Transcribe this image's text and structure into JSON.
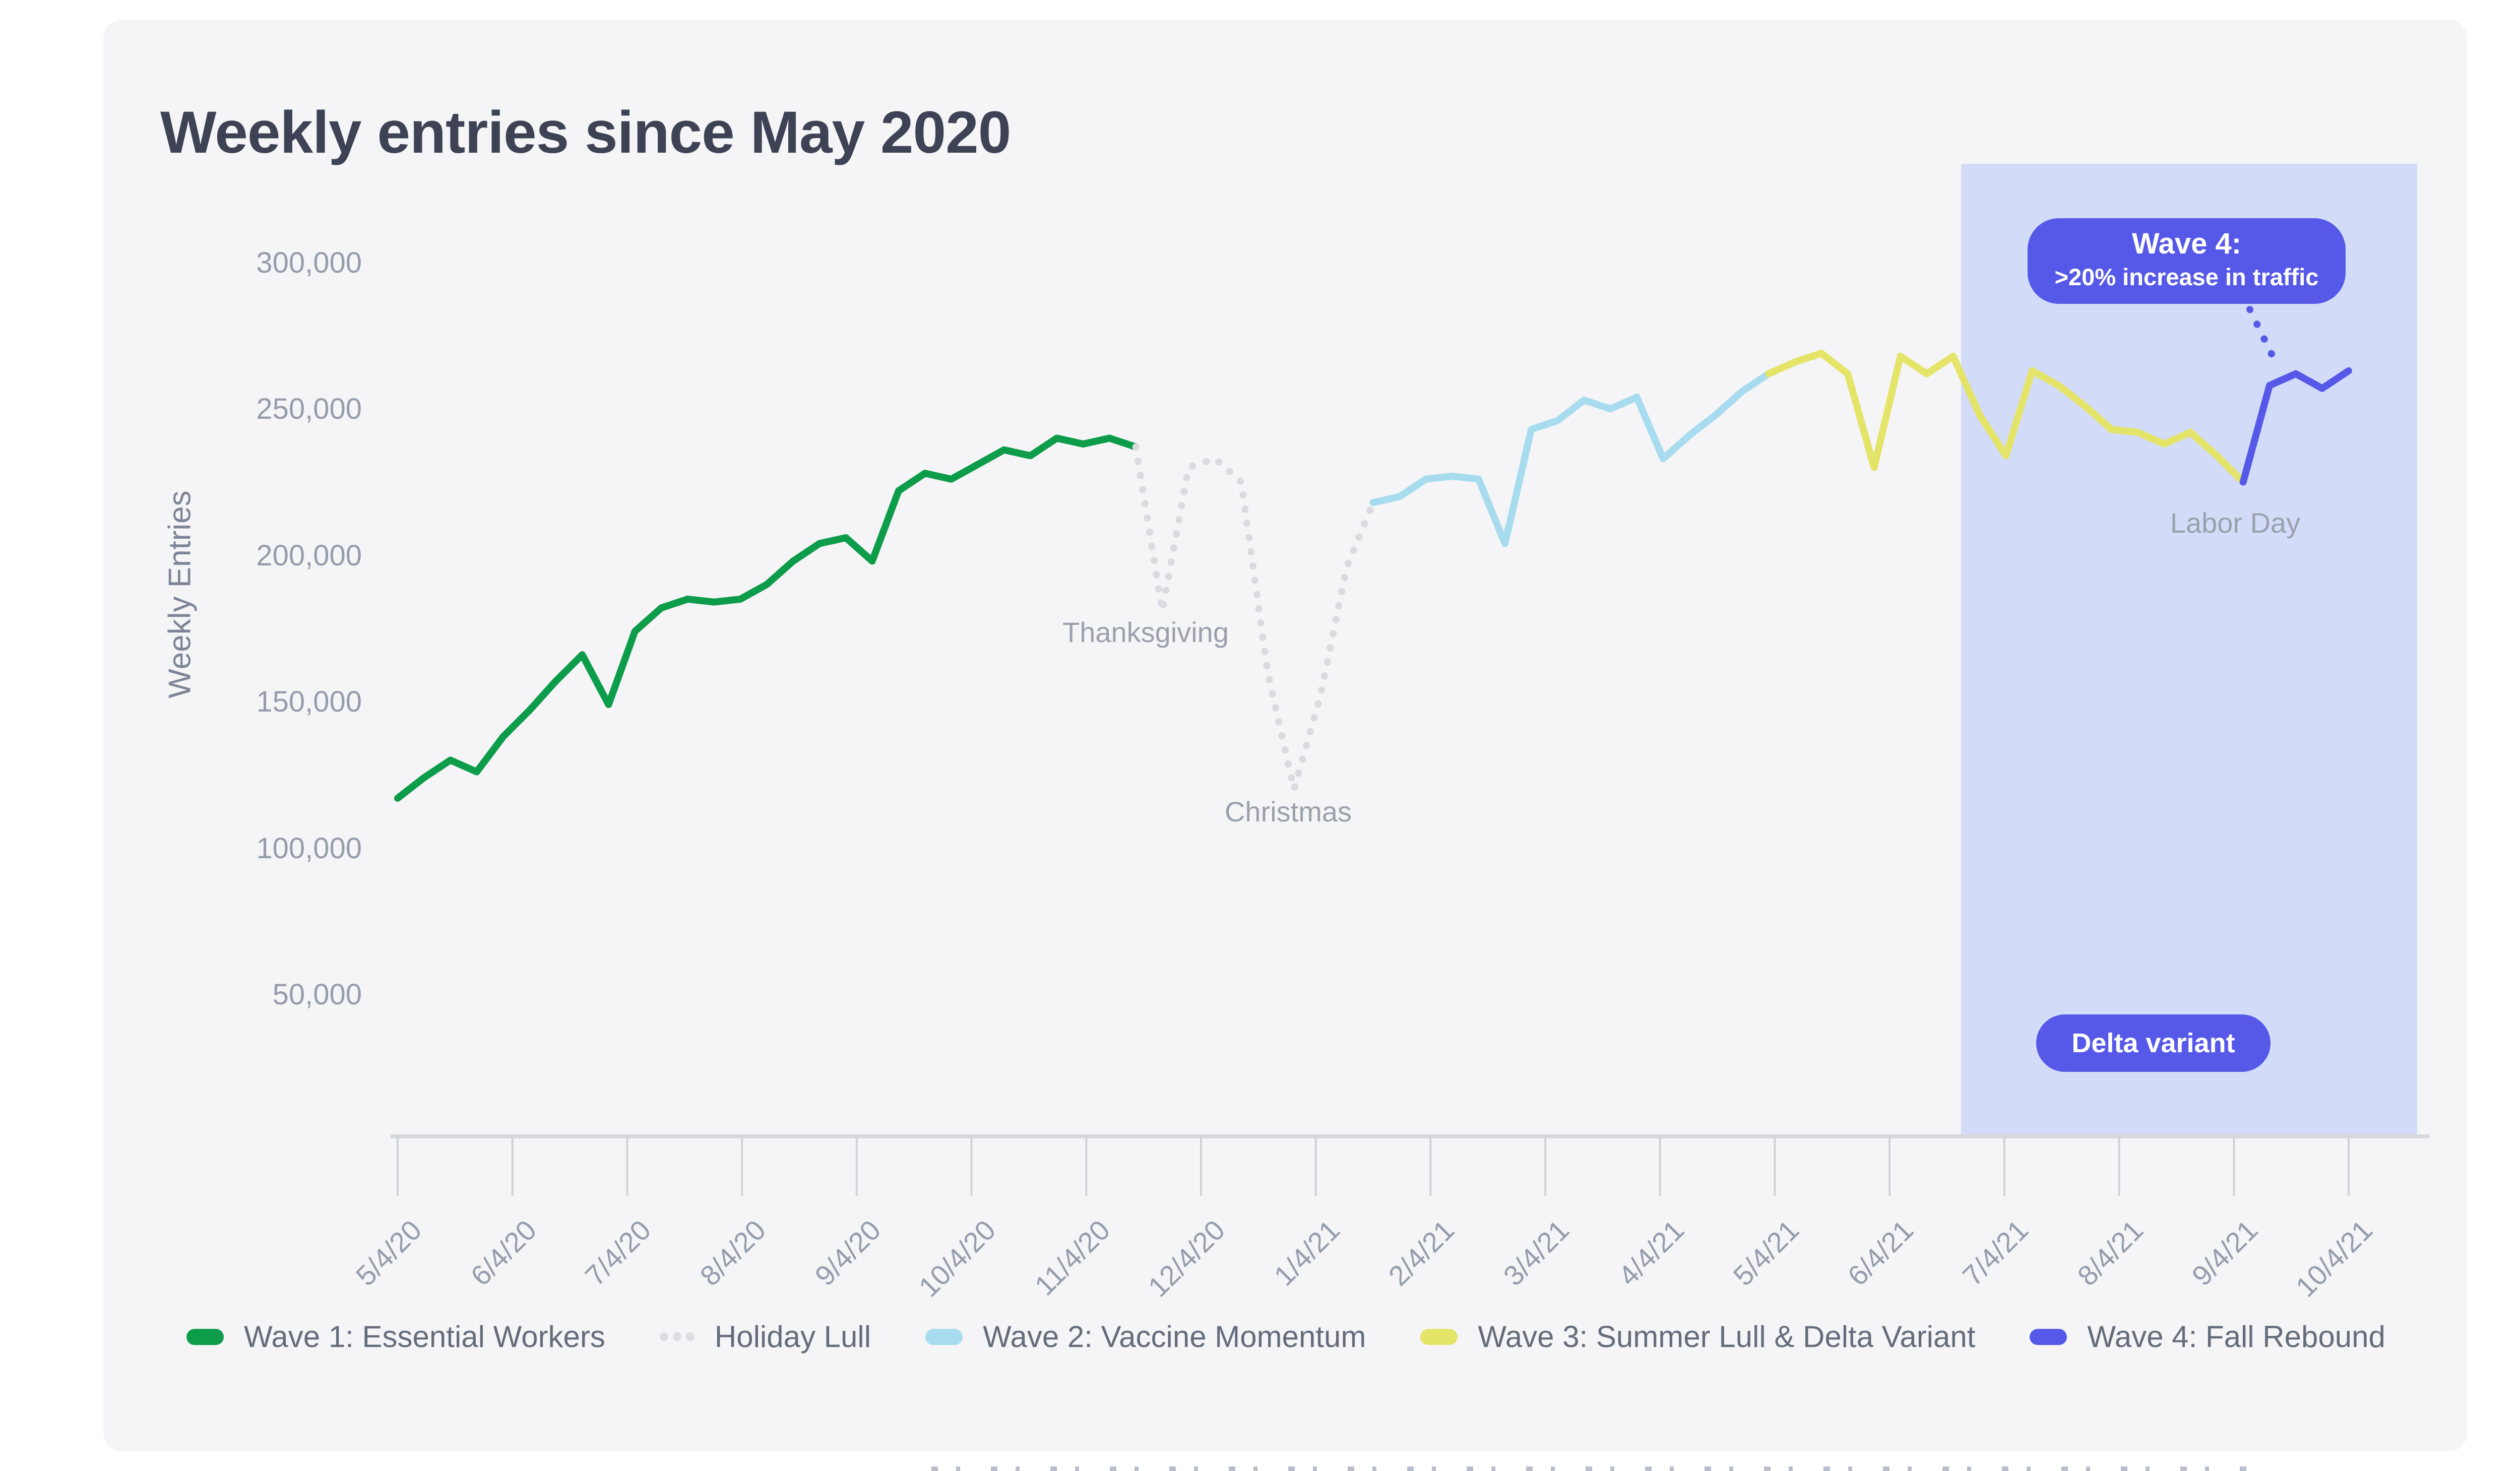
{
  "header": {
    "title": "Weekly entries since May 2020"
  },
  "y_axis": {
    "title": "Weekly Entries",
    "tick_labels": [
      "300,000",
      "250,000",
      "200,000",
      "150,000",
      "100,000",
      "50,000"
    ],
    "tick_values": [
      300,
      250,
      200,
      150,
      100,
      50
    ]
  },
  "x_axis": {
    "tick_labels": [
      "5/4/20",
      "6/4/20",
      "7/4/20",
      "8/4/20",
      "9/4/20",
      "10/4/20",
      "11/4/20",
      "12/4/20",
      "1/4/21",
      "2/4/21",
      "3/4/21",
      "4/4/21",
      "5/4/21",
      "6/4/21",
      "7/4/21",
      "8/4/21",
      "9/4/21",
      "10/4/21"
    ]
  },
  "annotations": {
    "thanksgiving": "Thanksgiving",
    "christmas": "Christmas",
    "labor_day": "Labor Day",
    "wave4_badge": {
      "line1": "Wave 4:",
      "line2": ">20% increase in traffic"
    },
    "delta_badge": "Delta variant"
  },
  "legend": {
    "items": [
      {
        "label": "Wave 1: Essential Workers",
        "color": "#0d9c4a",
        "style": "solid"
      },
      {
        "label": "Holiday Lull",
        "color": "#d9dbe1",
        "style": "dotted"
      },
      {
        "label": "Wave 2: Vaccine Momentum",
        "color": "#a7dcee",
        "style": "solid"
      },
      {
        "label": "Wave 3: Summer Lull & Delta Variant",
        "color": "#e4e468",
        "style": "solid"
      },
      {
        "label": "Wave 4: Fall Rebound",
        "color": "#5659e8",
        "style": "solid"
      }
    ]
  },
  "colors": {
    "page": "#ffffff",
    "card": "#f5f5f7",
    "highlight_band": "#d2dcf8",
    "title_text": "#3d4354",
    "axis_line": "#d8d9df",
    "tick_line": "#d0d2d9",
    "axis_label_text": "#959cab",
    "annotation_text": "#9aa0ac",
    "legend_text": "#646b7a",
    "badge": "#5659e8",
    "badge_text": "#ffffff"
  },
  "chart_data": {
    "type": "line",
    "title": "Weekly entries since May 2020",
    "xlabel": "",
    "ylabel": "Weekly Entries",
    "x_interval": "weekly",
    "week0_date": "5/4/20",
    "last_week_date": "10/4/21",
    "values_unit": "weekly entries (thousands)",
    "ylim_thousands": [
      0,
      320
    ],
    "grid": false,
    "legend_position": "bottom",
    "highlight_region": {
      "start_week": 59.3,
      "end_week": 76.6,
      "start_date_approx": "7/1/21",
      "end_date_approx": "10/18/21",
      "color": "#d2dcf8"
    },
    "series": [
      {
        "key": "wave1",
        "name": "Wave 1: Essential Workers",
        "color": "#0d9c4a",
        "style": "solid",
        "start_week": 0,
        "values": [
          117,
          124,
          130,
          126,
          138,
          147,
          157,
          166,
          149,
          174,
          182,
          185,
          184,
          185,
          190,
          198,
          204,
          206,
          198,
          222,
          228,
          226,
          231,
          236,
          234,
          240,
          238,
          240,
          237
        ]
      },
      {
        "key": "holiday",
        "name": "Holiday Lull",
        "color": "#d9dbe1",
        "style": "dotted",
        "start_week": 28,
        "values": [
          237,
          181,
          230,
          233,
          225,
          160,
          120,
          152,
          196,
          218
        ]
      },
      {
        "key": "wave2",
        "name": "Wave 2: Vaccine Momentum",
        "color": "#a7dcee",
        "style": "solid",
        "start_week": 37,
        "values": [
          218,
          220,
          226,
          227,
          226,
          204,
          243,
          246,
          253,
          250,
          254,
          233,
          241,
          248,
          256,
          262
        ]
      },
      {
        "key": "wave3",
        "name": "Wave 3: Summer Lull & Delta Variant",
        "color": "#e4e468",
        "style": "solid",
        "start_week": 52,
        "values": [
          262,
          266,
          269,
          262,
          230,
          268,
          262,
          268,
          248,
          234,
          263,
          258,
          251,
          243,
          242,
          238,
          242,
          234,
          225
        ]
      },
      {
        "key": "wave4",
        "name": "Wave 4: Fall Rebound",
        "color": "#5659e8",
        "style": "solid",
        "start_week": 70,
        "values": [
          225,
          258,
          262,
          257,
          263
        ]
      }
    ],
    "point_annotations": [
      {
        "label": "Thanksgiving",
        "week": 29,
        "value_thousands": 181
      },
      {
        "label": "Christmas",
        "week": 34,
        "value_thousands": 120
      },
      {
        "label": "Labor Day",
        "week": 70,
        "value_thousands": 225
      }
    ]
  }
}
